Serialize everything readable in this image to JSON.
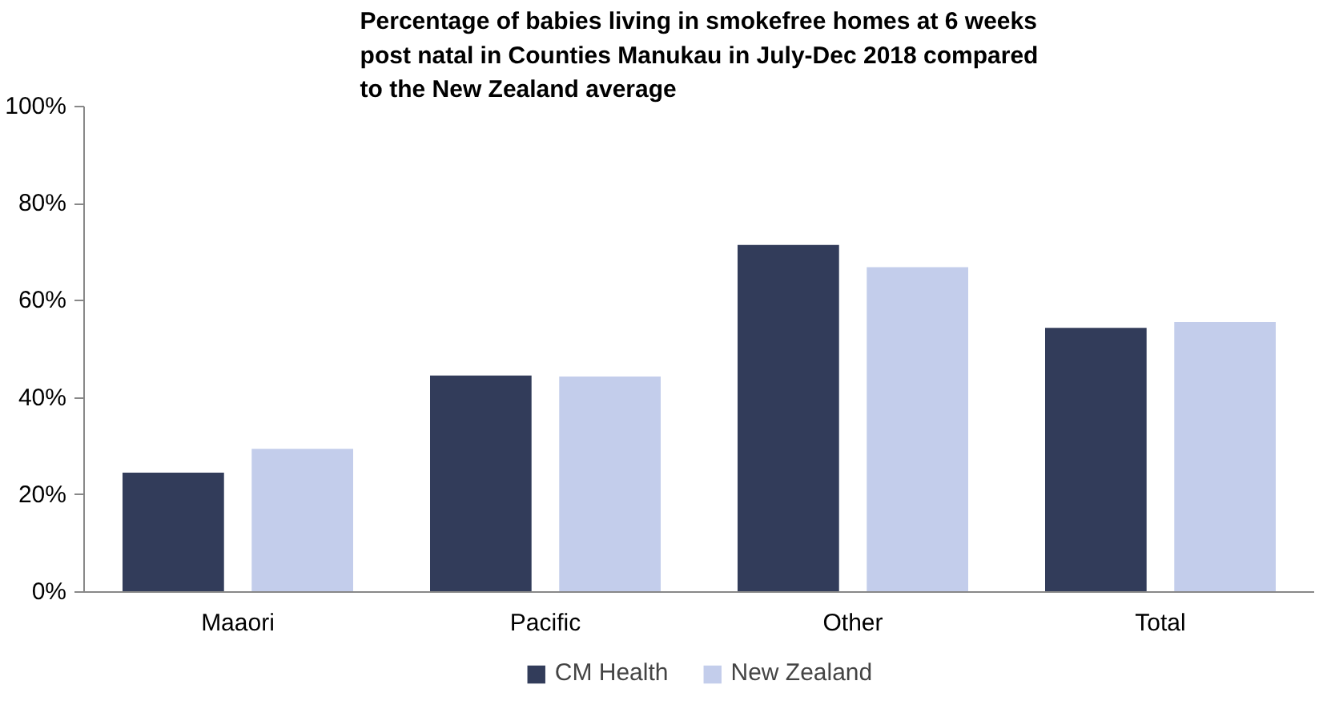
{
  "chart_data": {
    "type": "bar",
    "title": "Percentage of babies living in smokefree homes at 6 weeks post natal in Counties Manukau in July-Dec 2018 compared to the New Zealand average",
    "categories": [
      "Maaori",
      "Pacific",
      "Other",
      "Total"
    ],
    "series": [
      {
        "name": "CM Health",
        "color": "#323c5a",
        "values": [
          24.6,
          44.6,
          71.5,
          54.4
        ]
      },
      {
        "name": "New Zealand",
        "color": "#c3cdeb",
        "values": [
          29.5,
          44.4,
          66.9,
          55.6
        ]
      }
    ],
    "ylim": [
      0,
      100
    ],
    "yticks": [
      {
        "value": 0,
        "label": "0%"
      },
      {
        "value": 20,
        "label": "20%"
      },
      {
        "value": 40,
        "label": "40%"
      },
      {
        "value": 60,
        "label": "60%"
      },
      {
        "value": 80,
        "label": "80%"
      },
      {
        "value": 100,
        "label": "100%"
      }
    ],
    "grid": false,
    "legend": "bottom"
  }
}
